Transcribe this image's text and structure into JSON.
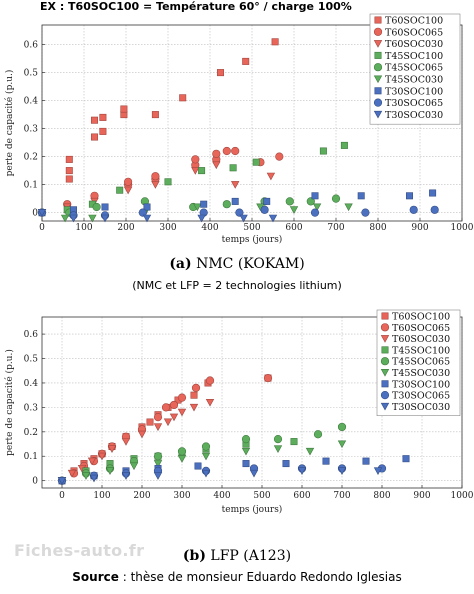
{
  "header": "EX : T60SOC100 =  Température 60° / charge 100%",
  "subtitle": "(NMC et LFP = 2 technologies lithium)",
  "watermark": "Fiches-auto.fr",
  "source": {
    "label": "Source",
    "text": " : thèse de monsieur Eduardo Redondo Iglesias"
  },
  "colors": {
    "red": "#e8655a",
    "green": "#5cae5c",
    "blue": "#4b70c0",
    "grid": "#bdbdbd"
  },
  "chart_data": [
    {
      "type": "scatter",
      "caption_prefix": "(a)",
      "caption": "NMC (KOKAM)",
      "xlabel": "temps (jours)",
      "ylabel": "perte de capacité (p.u.)",
      "xlim": [
        0,
        1000
      ],
      "ylim": [
        -0.03,
        0.67
      ],
      "xticks": [
        0,
        100,
        200,
        300,
        400,
        500,
        600,
        700,
        800,
        900,
        1000
      ],
      "yticks": [
        0,
        0.1,
        0.2,
        0.3,
        0.4,
        0.5,
        0.6
      ],
      "grid": true,
      "legend_position": "top-right",
      "series": [
        {
          "name": "T60SOC100",
          "color": "#e8655a",
          "marker": "square",
          "points": [
            [
              0,
              0
            ],
            [
              65,
              0.12
            ],
            [
              65,
              0.15
            ],
            [
              65,
              0.19
            ],
            [
              125,
              0.27
            ],
            [
              125,
              0.33
            ],
            [
              145,
              0.29
            ],
            [
              145,
              0.34
            ],
            [
              195,
              0.35
            ],
            [
              195,
              0.37
            ],
            [
              270,
              0.35
            ],
            [
              335,
              0.41
            ],
            [
              425,
              0.5
            ],
            [
              485,
              0.54
            ],
            [
              555,
              0.61
            ]
          ]
        },
        {
          "name": "T60SOC065",
          "color": "#e8655a",
          "marker": "circle",
          "points": [
            [
              0,
              0
            ],
            [
              60,
              0.03
            ],
            [
              125,
              0.06
            ],
            [
              205,
              0.1
            ],
            [
              205,
              0.11
            ],
            [
              270,
              0.12
            ],
            [
              270,
              0.13
            ],
            [
              365,
              0.17
            ],
            [
              365,
              0.19
            ],
            [
              415,
              0.19
            ],
            [
              415,
              0.21
            ],
            [
              440,
              0.22
            ],
            [
              460,
              0.22
            ],
            [
              520,
              0.18
            ],
            [
              565,
              0.2
            ]
          ]
        },
        {
          "name": "T60SOC030",
          "color": "#e8655a",
          "marker": "triangle-down",
          "points": [
            [
              0,
              0
            ],
            [
              60,
              0.02
            ],
            [
              125,
              0.04
            ],
            [
              205,
              0.08
            ],
            [
              270,
              0.1
            ],
            [
              365,
              0.15
            ],
            [
              415,
              0.17
            ],
            [
              460,
              0.1
            ],
            [
              545,
              0.13
            ]
          ]
        },
        {
          "name": "T45SOC100",
          "color": "#5cae5c",
          "marker": "square",
          "points": [
            [
              0,
              0
            ],
            [
              60,
              0.01
            ],
            [
              120,
              0.03
            ],
            [
              185,
              0.08
            ],
            [
              300,
              0.11
            ],
            [
              380,
              0.15
            ],
            [
              455,
              0.16
            ],
            [
              510,
              0.18
            ],
            [
              670,
              0.22
            ],
            [
              720,
              0.24
            ]
          ]
        },
        {
          "name": "T45SOC065",
          "color": "#5cae5c",
          "marker": "circle",
          "points": [
            [
              0,
              0
            ],
            [
              65,
              0.0
            ],
            [
              130,
              0.02
            ],
            [
              245,
              0.04
            ],
            [
              360,
              0.02
            ],
            [
              440,
              0.03
            ],
            [
              530,
              0.04
            ],
            [
              590,
              0.04
            ],
            [
              640,
              0.04
            ],
            [
              700,
              0.05
            ]
          ]
        },
        {
          "name": "T45SOC030",
          "color": "#5cae5c",
          "marker": "triangle-down",
          "points": [
            [
              0,
              0
            ],
            [
              55,
              -0.02
            ],
            [
              120,
              -0.02
            ],
            [
              245,
              0.0
            ],
            [
              370,
              0.02
            ],
            [
              520,
              0.02
            ],
            [
              600,
              0.01
            ],
            [
              655,
              0.02
            ],
            [
              730,
              0.02
            ]
          ]
        },
        {
          "name": "T30SOC100",
          "color": "#4b70c0",
          "marker": "square",
          "points": [
            [
              0,
              0
            ],
            [
              75,
              0.01
            ],
            [
              150,
              0.02
            ],
            [
              250,
              0.02
            ],
            [
              385,
              0.03
            ],
            [
              460,
              0.04
            ],
            [
              535,
              0.04
            ],
            [
              650,
              0.06
            ],
            [
              760,
              0.06
            ],
            [
              875,
              0.06
            ],
            [
              930,
              0.07
            ]
          ]
        },
        {
          "name": "T30SOC065",
          "color": "#4b70c0",
          "marker": "circle",
          "points": [
            [
              0,
              0
            ],
            [
              75,
              -0.01
            ],
            [
              150,
              -0.01
            ],
            [
              240,
              0.0
            ],
            [
              385,
              0.0
            ],
            [
              470,
              0.0
            ],
            [
              530,
              0.01
            ],
            [
              650,
              0.0
            ],
            [
              770,
              0.0
            ],
            [
              885,
              0.01
            ],
            [
              935,
              0.01
            ]
          ]
        },
        {
          "name": "T30SOC030",
          "color": "#4b70c0",
          "marker": "triangle-down",
          "points": [
            [
              0,
              0
            ],
            [
              75,
              -0.02
            ],
            [
              150,
              -0.02
            ],
            [
              250,
              -0.02
            ],
            [
              380,
              -0.02
            ],
            [
              480,
              -0.02
            ],
            [
              550,
              -0.02
            ]
          ]
        }
      ]
    },
    {
      "type": "scatter",
      "caption_prefix": "(b)",
      "caption": "LFP (A123)",
      "xlabel": "temps (jours)",
      "ylabel": "perte de capacité (p.u.)",
      "xlim": [
        -50,
        1000
      ],
      "ylim": [
        -0.03,
        0.67
      ],
      "xticks": [
        0,
        100,
        200,
        300,
        400,
        500,
        600,
        700,
        800,
        900,
        1000
      ],
      "yticks": [
        0,
        0.1,
        0.2,
        0.3,
        0.4,
        0.5,
        0.6
      ],
      "grid": true,
      "legend_position": "top-right",
      "series": [
        {
          "name": "T60SOC100",
          "color": "#e8655a",
          "marker": "square",
          "points": [
            [
              0,
              0
            ],
            [
              30,
              0.04
            ],
            [
              55,
              0.07
            ],
            [
              80,
              0.09
            ],
            [
              100,
              0.11
            ],
            [
              125,
              0.14
            ],
            [
              160,
              0.18
            ],
            [
              200,
              0.22
            ],
            [
              220,
              0.24
            ],
            [
              240,
              0.27
            ],
            [
              265,
              0.3
            ],
            [
              290,
              0.33
            ],
            [
              330,
              0.35
            ],
            [
              365,
              0.4
            ],
            [
              515,
              0.42
            ]
          ]
        },
        {
          "name": "T60SOC065",
          "color": "#e8655a",
          "marker": "circle",
          "points": [
            [
              0,
              0
            ],
            [
              30,
              0.03
            ],
            [
              55,
              0.06
            ],
            [
              80,
              0.08
            ],
            [
              100,
              0.11
            ],
            [
              125,
              0.14
            ],
            [
              160,
              0.18
            ],
            [
              200,
              0.21
            ],
            [
              240,
              0.26
            ],
            [
              260,
              0.3
            ],
            [
              280,
              0.31
            ],
            [
              300,
              0.34
            ],
            [
              335,
              0.38
            ],
            [
              370,
              0.41
            ],
            [
              515,
              0.42
            ]
          ]
        },
        {
          "name": "T60SOC030",
          "color": "#e8655a",
          "marker": "triangle-down",
          "points": [
            [
              0,
              0
            ],
            [
              25,
              0.03
            ],
            [
              50,
              0.05
            ],
            [
              75,
              0.08
            ],
            [
              100,
              0.1
            ],
            [
              125,
              0.13
            ],
            [
              160,
              0.16
            ],
            [
              200,
              0.19
            ],
            [
              240,
              0.22
            ],
            [
              265,
              0.24
            ],
            [
              280,
              0.26
            ],
            [
              300,
              0.28
            ],
            [
              330,
              0.3
            ],
            [
              370,
              0.32
            ]
          ]
        },
        {
          "name": "T45SOC100",
          "color": "#5cae5c",
          "marker": "square",
          "points": [
            [
              0,
              0
            ],
            [
              60,
              0.04
            ],
            [
              120,
              0.07
            ],
            [
              180,
              0.09
            ],
            [
              240,
              0.1
            ],
            [
              300,
              0.11
            ],
            [
              360,
              0.13
            ],
            [
              460,
              0.15
            ],
            [
              580,
              0.16
            ]
          ]
        },
        {
          "name": "T45SOC065",
          "color": "#5cae5c",
          "marker": "circle",
          "points": [
            [
              0,
              0
            ],
            [
              60,
              0.03
            ],
            [
              120,
              0.05
            ],
            [
              180,
              0.08
            ],
            [
              240,
              0.1
            ],
            [
              300,
              0.12
            ],
            [
              360,
              0.14
            ],
            [
              460,
              0.17
            ],
            [
              540,
              0.17
            ],
            [
              640,
              0.19
            ],
            [
              700,
              0.22
            ]
          ]
        },
        {
          "name": "T45SOC030",
          "color": "#5cae5c",
          "marker": "triangle-down",
          "points": [
            [
              0,
              0
            ],
            [
              60,
              0.02
            ],
            [
              120,
              0.04
            ],
            [
              180,
              0.06
            ],
            [
              240,
              0.07
            ],
            [
              300,
              0.09
            ],
            [
              360,
              0.1
            ],
            [
              460,
              0.12
            ],
            [
              540,
              0.13
            ],
            [
              620,
              0.12
            ],
            [
              700,
              0.15
            ]
          ]
        },
        {
          "name": "T30SOC100",
          "color": "#4b70c0",
          "marker": "square",
          "points": [
            [
              0,
              0
            ],
            [
              80,
              0.02
            ],
            [
              160,
              0.04
            ],
            [
              240,
              0.05
            ],
            [
              340,
              0.06
            ],
            [
              460,
              0.07
            ],
            [
              560,
              0.07
            ],
            [
              660,
              0.08
            ],
            [
              760,
              0.08
            ],
            [
              860,
              0.09
            ]
          ]
        },
        {
          "name": "T30SOC065",
          "color": "#4b70c0",
          "marker": "circle",
          "points": [
            [
              0,
              0
            ],
            [
              80,
              0.02
            ],
            [
              160,
              0.03
            ],
            [
              240,
              0.04
            ],
            [
              360,
              0.04
            ],
            [
              480,
              0.05
            ],
            [
              600,
              0.05
            ],
            [
              700,
              0.05
            ],
            [
              800,
              0.05
            ]
          ]
        },
        {
          "name": "T30SOC030",
          "color": "#4b70c0",
          "marker": "triangle-down",
          "points": [
            [
              0,
              0
            ],
            [
              80,
              0.01
            ],
            [
              160,
              0.02
            ],
            [
              240,
              0.02
            ],
            [
              360,
              0.03
            ],
            [
              480,
              0.03
            ],
            [
              600,
              0.04
            ],
            [
              700,
              0.04
            ],
            [
              790,
              0.04
            ]
          ]
        }
      ]
    }
  ]
}
